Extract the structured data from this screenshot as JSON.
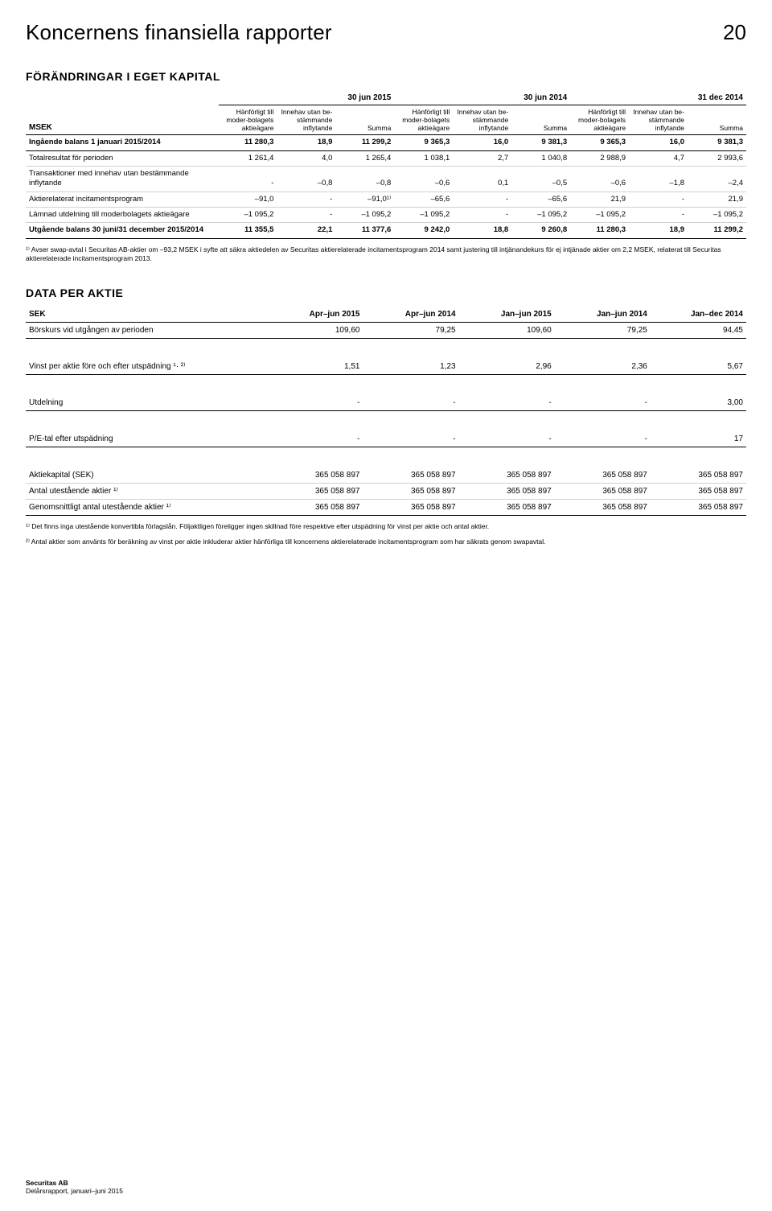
{
  "header": {
    "title": "Koncernens finansiella rapporter",
    "page_number": "20"
  },
  "equity": {
    "title": "FÖRÄNDRINGAR I EGET KAPITAL",
    "periods": [
      "30 jun 2015",
      "30 jun 2014",
      "31 dec 2014"
    ],
    "subheaders": {
      "msek": "MSEK",
      "col_a": "Hänförligt till moder-bolagets aktieägare",
      "col_b": "Innehav utan be-stämmande inflytande",
      "col_c": "Summa"
    },
    "rows": [
      {
        "label": "Ingående balans 1 januari 2015/2014",
        "heavy": true,
        "v": [
          "11 280,3",
          "18,9",
          "11 299,2",
          "9 365,3",
          "16,0",
          "9 381,3",
          "9 365,3",
          "16,0",
          "9 381,3"
        ]
      },
      {
        "label": "Totalresultat för perioden",
        "v": [
          "1 261,4",
          "4,0",
          "1 265,4",
          "1 038,1",
          "2,7",
          "1 040,8",
          "2 988,9",
          "4,7",
          "2 993,6"
        ]
      },
      {
        "label": "Transaktioner med innehav utan bestämmande inflytande",
        "v": [
          "-",
          "–0,8",
          "–0,8",
          "–0,6",
          "0,1",
          "–0,5",
          "–0,6",
          "–1,8",
          "–2,4"
        ]
      },
      {
        "label": "Aktierelaterat incitamentsprogram",
        "v": [
          "–91,0",
          "-",
          "–91,0¹⁾",
          "–65,6",
          "-",
          "–65,6",
          "21,9",
          "-",
          "21,9"
        ]
      },
      {
        "label": "Lämnad utdelning till moderbolagets aktieägare",
        "v": [
          "–1 095,2",
          "-",
          "–1 095,2",
          "–1 095,2",
          "-",
          "–1 095,2",
          "–1 095,2",
          "-",
          "–1 095,2"
        ]
      },
      {
        "label": "Utgående balans 30 juni/31 december 2015/2014",
        "heavy": true,
        "v": [
          "11 355,5",
          "22,1",
          "11 377,6",
          "9 242,0",
          "18,8",
          "9 260,8",
          "11 280,3",
          "18,9",
          "11 299,2"
        ]
      }
    ],
    "footnote": "¹⁾ Avser swap-avtal i Securitas AB-aktier om –93,2 MSEK i syfte att säkra aktiedelen av Securitas aktierelaterade incitamentsprogram 2014 samt justering till intjänandekurs för ej intjänade aktier om 2,2 MSEK, relaterat till Securitas aktierelaterade incitamentsprogram 2013."
  },
  "dpa": {
    "title": "DATA PER AKTIE",
    "headers": [
      "SEK",
      "Apr–jun 2015",
      "Apr–jun 2014",
      "Jan–jun 2015",
      "Jan–jun 2014",
      "Jan–dec 2014"
    ],
    "groups": [
      [
        {
          "label": "Börskurs vid utgången av perioden",
          "v": [
            "109,60",
            "79,25",
            "109,60",
            "79,25",
            "94,45"
          ]
        }
      ],
      [
        {
          "label": "Vinst per aktie före och efter utspädning ¹· ²⁾",
          "v": [
            "1,51",
            "1,23",
            "2,96",
            "2,36",
            "5,67"
          ]
        }
      ],
      [
        {
          "label": "Utdelning",
          "v": [
            "-",
            "-",
            "-",
            "-",
            "3,00"
          ]
        }
      ],
      [
        {
          "label": "P/E-tal efter utspädning",
          "v": [
            "-",
            "-",
            "-",
            "-",
            "17"
          ]
        }
      ],
      [
        {
          "label": "Aktiekapital (SEK)",
          "v": [
            "365 058 897",
            "365 058 897",
            "365 058 897",
            "365 058 897",
            "365 058 897"
          ]
        },
        {
          "label": "Antal utestående aktier ¹⁾",
          "v": [
            "365 058 897",
            "365 058 897",
            "365 058 897",
            "365 058 897",
            "365 058 897"
          ]
        },
        {
          "label": "Genomsnittligt antal utestående aktier ¹⁾",
          "v": [
            "365 058 897",
            "365 058 897",
            "365 058 897",
            "365 058 897",
            "365 058 897"
          ]
        }
      ]
    ],
    "footnote1": "¹⁾ Det finns inga utestående konvertibla förlagslån. Följaktligen föreligger ingen skillnad före respektive efter utspädning för vinst per aktie och antal aktier.",
    "footnote2": "²⁾ Antal aktier som använts för beräkning av vinst per aktie inkluderar aktier hänförliga till koncernens aktierelaterade incitamentsprogram som har säkrats genom swapavtal."
  },
  "footer": {
    "company": "Securitas AB",
    "report": "Delårsrapport, januari–juni 2015"
  }
}
